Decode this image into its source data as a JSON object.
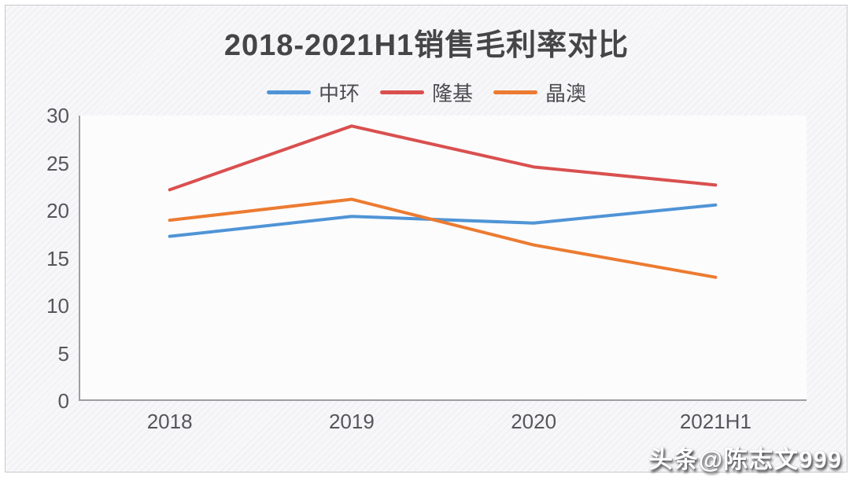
{
  "title": "2018-2021H1销售毛利率对比",
  "watermark": "头条@陈志文999",
  "colors": {
    "series_blue": "#4f94d6",
    "series_red": "#d9504f",
    "series_orange": "#ec7b31",
    "axis_line": "#9d9da2",
    "axis_text": "#56565a",
    "title_text": "#454548"
  },
  "chart_data": {
    "type": "line",
    "title": "2018-2021H1销售毛利率对比",
    "categories": [
      "2018",
      "2019",
      "2020",
      "2021H1"
    ],
    "series": [
      {
        "name": "中环",
        "color": "#4f94d6",
        "values": [
          17.3,
          19.4,
          18.7,
          20.6
        ]
      },
      {
        "name": "隆基",
        "color": "#d9504f",
        "values": [
          22.2,
          28.9,
          24.6,
          22.7
        ]
      },
      {
        "name": "晶澳",
        "color": "#ec7b31",
        "values": [
          19.0,
          21.2,
          16.4,
          13.0
        ]
      }
    ],
    "xlabel": "",
    "ylabel": "",
    "ylim": [
      0,
      30
    ],
    "yticks": [
      0,
      5,
      10,
      15,
      20,
      25,
      30
    ],
    "grid": false,
    "legend_position": "top",
    "line_width": 4
  }
}
